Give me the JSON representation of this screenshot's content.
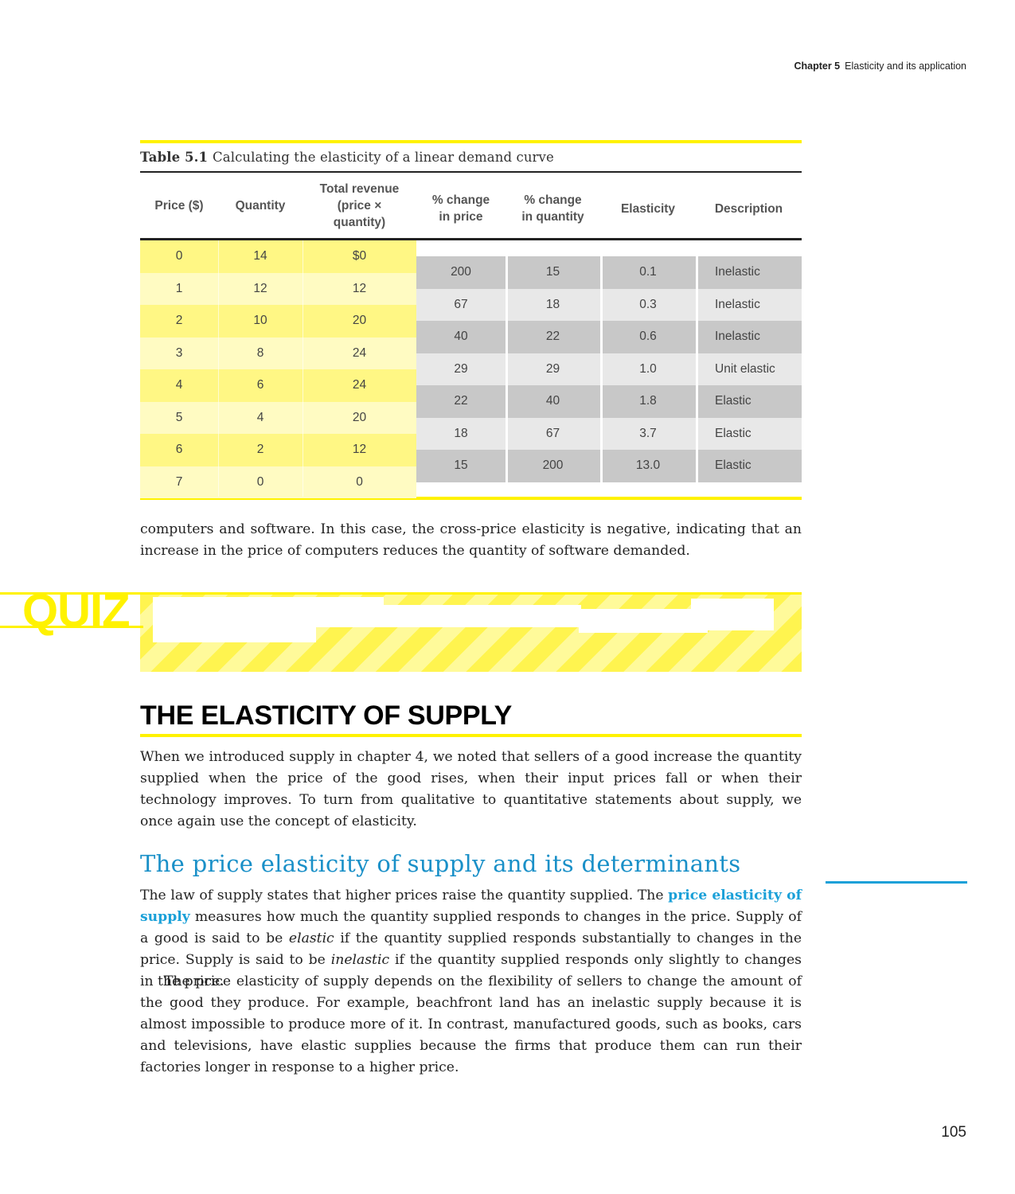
{
  "running_head": {
    "chapter": "Chapter 5",
    "title": "Elasticity and its application"
  },
  "table": {
    "number": "Table 5.1",
    "title": "Calculating the elasticity of a linear demand curve",
    "headers": {
      "price": "Price ($)",
      "quantity": "Quantity",
      "revenue_1": "Total revenue",
      "revenue_2": "(price ×",
      "revenue_3": "quantity)",
      "pct_price_1": "% change",
      "pct_price_2": "in price",
      "pct_qty_1": "% change",
      "pct_qty_2": "in quantity",
      "elasticity": "Elasticity",
      "description": "Description"
    },
    "left_rows": [
      {
        "price": "0",
        "quantity": "14",
        "revenue": "$0"
      },
      {
        "price": "1",
        "quantity": "12",
        "revenue": "12"
      },
      {
        "price": "2",
        "quantity": "10",
        "revenue": "20"
      },
      {
        "price": "3",
        "quantity": "8",
        "revenue": "24"
      },
      {
        "price": "4",
        "quantity": "6",
        "revenue": "24"
      },
      {
        "price": "5",
        "quantity": "4",
        "revenue": "20"
      },
      {
        "price": "6",
        "quantity": "2",
        "revenue": "12"
      },
      {
        "price": "7",
        "quantity": "0",
        "revenue": "0"
      }
    ],
    "right_rows": [
      {
        "pct_price": "200",
        "pct_qty": "15",
        "elasticity": "0.1",
        "description": "Inelastic"
      },
      {
        "pct_price": "67",
        "pct_qty": "18",
        "elasticity": "0.3",
        "description": "Inelastic"
      },
      {
        "pct_price": "40",
        "pct_qty": "22",
        "elasticity": "0.6",
        "description": "Inelastic"
      },
      {
        "pct_price": "29",
        "pct_qty": "29",
        "elasticity": "1.0",
        "description": "Unit elastic"
      },
      {
        "pct_price": "22",
        "pct_qty": "40",
        "elasticity": "1.8",
        "description": "Elastic"
      },
      {
        "pct_price": "18",
        "pct_qty": "67",
        "elasticity": "3.7",
        "description": "Elastic"
      },
      {
        "pct_price": "15",
        "pct_qty": "200",
        "elasticity": "13.0",
        "description": "Elastic"
      }
    ]
  },
  "para_continued": "computers and software. In this case, the cross-price elasticity is negative, indicating that an increase in the price of computers reduces the quantity of software demanded.",
  "quiz_label": "QUIZ",
  "section_heading": "THE ELASTICITY OF SUPPLY",
  "para_intro": "When we introduced supply in chapter 4, we noted that sellers of a good increase the quantity supplied when the price of the good rises, when their input prices fall or when their technology improves. To turn from qualitative to quantitative statements about supply, we once again use the concept of elasticity.",
  "subheading": "The price elasticity of supply and its determinants",
  "para_law": {
    "a": "The law of supply states that higher prices raise the quantity supplied. The ",
    "keyterm": "price elasticity of supply",
    "b": " measures how much the quantity supplied responds to changes in the price. Supply of a good is said to be ",
    "elastic": "elastic",
    "c": " if the quantity supplied responds substantially to changes in the price. Supply is said to be ",
    "inelastic": "inelastic",
    "d": " if the quantity supplied responds only slightly to changes in the price."
  },
  "para_flex": "The price elasticity of supply depends on the flexibility of sellers to change the amount of the good they produce. For example, beachfront land has an inelastic supply because it is almost impossible to produce more of it. In contrast, manufactured goods, such as books, cars and televisions, have elastic supplies because the firms that produce them can run their factories longer in response to a higher price.",
  "page_number": "105",
  "colors": {
    "accent_yellow": "#fff200",
    "keyterm_blue": "#1aa0d8",
    "heading_blue": "#1a90c8"
  }
}
